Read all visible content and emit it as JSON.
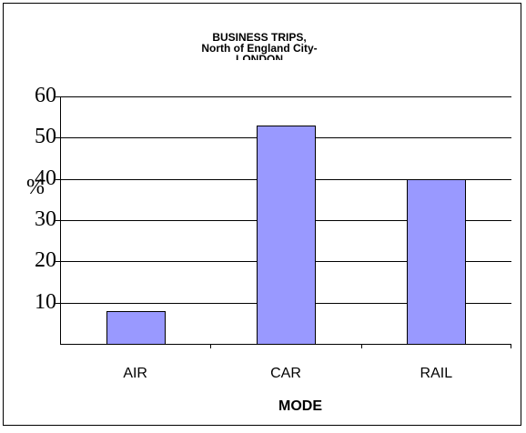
{
  "chart_data": {
    "type": "bar",
    "title_lines": [
      "BUSINESS TRIPS,",
      "North of England City-",
      "LONDON"
    ],
    "categories": [
      "AIR",
      "CAR",
      "RAIL"
    ],
    "values": [
      8,
      53,
      40
    ],
    "xlabel": "MODE",
    "ylabel": "%",
    "ylim": [
      0,
      60
    ],
    "yticks": [
      10,
      20,
      30,
      40,
      50,
      60
    ],
    "grid": true,
    "bar_color": "#9999ff",
    "bar_edge_color": "#000000"
  }
}
